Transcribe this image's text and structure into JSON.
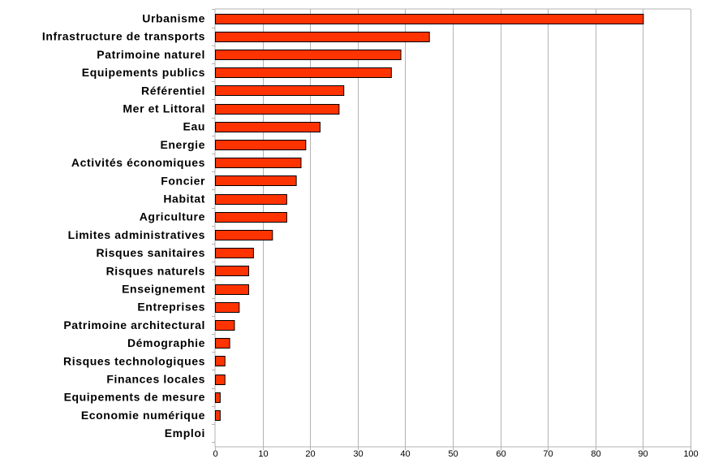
{
  "chart_data": {
    "type": "bar",
    "orientation": "horizontal",
    "categories": [
      "Urbanisme",
      "Infrastructure de transports",
      "Patrimoine naturel",
      "Equipements publics",
      "Référentiel",
      "Mer et Littoral",
      "Eau",
      "Energie",
      "Activités économiques",
      "Foncier",
      "Habitat",
      "Agriculture",
      "Limites administratives",
      "Risques sanitaires",
      "Risques naturels",
      "Enseignement",
      "Entreprises",
      "Patrimoine architectural",
      "Démographie",
      "Risques technologiques",
      "Finances locales",
      "Equipements de mesure",
      "Economie numérique",
      "Emploi"
    ],
    "values": [
      90,
      45,
      39,
      37,
      27,
      26,
      22,
      19,
      18,
      17,
      15,
      15,
      12,
      8,
      7,
      7,
      5,
      4,
      3,
      2,
      2,
      1,
      1,
      0
    ],
    "xlim": [
      0,
      100
    ],
    "x_ticks": [
      "0",
      "10",
      "20",
      "30",
      "40",
      "50",
      "60",
      "70",
      "80",
      "90",
      "100"
    ],
    "grid": "vertical",
    "legend": "none",
    "colors": {
      "bar_fill": "#ff3300",
      "bar_stroke": "#000000",
      "grid": "#b3b3b3",
      "axis": "#b3b3b3"
    }
  }
}
